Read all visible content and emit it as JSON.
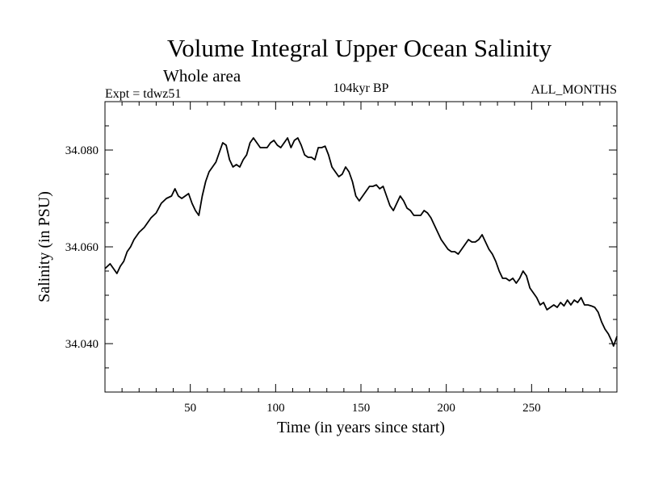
{
  "chart_data": {
    "type": "line",
    "title": "Volume Integral Upper Ocean Salinity",
    "subtitle": "Whole area",
    "experiment": "Expt = tdwz51",
    "period": "104kyr BP",
    "months": "ALL_MONTHS",
    "xlabel": "Time (in years since start)",
    "ylabel": "Salinity (in PSU)",
    "xlim": [
      0,
      300
    ],
    "ylim": [
      34.03,
      34.09
    ],
    "x_ticks": [
      {
        "value": 50,
        "label": "50"
      },
      {
        "value": 100,
        "label": "100"
      },
      {
        "value": 150,
        "label": "150"
      },
      {
        "value": 200,
        "label": "200"
      },
      {
        "value": 250,
        "label": "250"
      }
    ],
    "y_ticks": [
      {
        "value": 34.04,
        "label": "34.040"
      },
      {
        "value": 34.06,
        "label": "34.060"
      },
      {
        "value": 34.08,
        "label": "34.080"
      }
    ],
    "x_minor_step": 10,
    "y_minor_step": 0.005,
    "grid": false,
    "series": [
      {
        "name": "Salinity",
        "color": "#000000",
        "points": [
          [
            0,
            34.0555
          ],
          [
            3,
            34.0565
          ],
          [
            5,
            34.0555
          ],
          [
            7,
            34.0545
          ],
          [
            9,
            34.056
          ],
          [
            11,
            34.057
          ],
          [
            13,
            34.059
          ],
          [
            15,
            34.06
          ],
          [
            17,
            34.0615
          ],
          [
            20,
            34.063
          ],
          [
            23,
            34.064
          ],
          [
            25,
            34.065
          ],
          [
            27,
            34.066
          ],
          [
            30,
            34.067
          ],
          [
            33,
            34.069
          ],
          [
            36,
            34.07
          ],
          [
            39,
            34.0705
          ],
          [
            41,
            34.072
          ],
          [
            43,
            34.0705
          ],
          [
            45,
            34.07
          ],
          [
            47,
            34.0705
          ],
          [
            49,
            34.071
          ],
          [
            51,
            34.069
          ],
          [
            53,
            34.0675
          ],
          [
            55,
            34.0665
          ],
          [
            57,
            34.0705
          ],
          [
            59,
            34.0735
          ],
          [
            61,
            34.0755
          ],
          [
            63,
            34.0765
          ],
          [
            65,
            34.0775
          ],
          [
            67,
            34.0795
          ],
          [
            69,
            34.0815
          ],
          [
            71,
            34.081
          ],
          [
            73,
            34.078
          ],
          [
            75,
            34.0765
          ],
          [
            77,
            34.077
          ],
          [
            79,
            34.0765
          ],
          [
            81,
            34.078
          ],
          [
            83,
            34.079
          ],
          [
            85,
            34.0815
          ],
          [
            87,
            34.0825
          ],
          [
            89,
            34.0815
          ],
          [
            91,
            34.0805
          ],
          [
            93,
            34.0805
          ],
          [
            95,
            34.0805
          ],
          [
            97,
            34.0815
          ],
          [
            99,
            34.082
          ],
          [
            101,
            34.081
          ],
          [
            103,
            34.0805
          ],
          [
            105,
            34.0815
          ],
          [
            107,
            34.0825
          ],
          [
            109,
            34.0805
          ],
          [
            111,
            34.082
          ],
          [
            113,
            34.0825
          ],
          [
            115,
            34.081
          ],
          [
            117,
            34.079
          ],
          [
            119,
            34.0785
          ],
          [
            121,
            34.0785
          ],
          [
            123,
            34.078
          ],
          [
            125,
            34.0805
          ],
          [
            127,
            34.0805
          ],
          [
            129,
            34.0808
          ],
          [
            131,
            34.079
          ],
          [
            133,
            34.0765
          ],
          [
            135,
            34.0755
          ],
          [
            137,
            34.0745
          ],
          [
            139,
            34.075
          ],
          [
            141,
            34.0765
          ],
          [
            143,
            34.0755
          ],
          [
            145,
            34.0735
          ],
          [
            147,
            34.0705
          ],
          [
            149,
            34.0695
          ],
          [
            151,
            34.0705
          ],
          [
            153,
            34.0715
          ],
          [
            155,
            34.0725
          ],
          [
            157,
            34.0725
          ],
          [
            159,
            34.0728
          ],
          [
            161,
            34.072
          ],
          [
            163,
            34.0725
          ],
          [
            165,
            34.0705
          ],
          [
            167,
            34.0685
          ],
          [
            169,
            34.0675
          ],
          [
            171,
            34.069
          ],
          [
            173,
            34.0705
          ],
          [
            175,
            34.0695
          ],
          [
            177,
            34.068
          ],
          [
            179,
            34.0675
          ],
          [
            181,
            34.0665
          ],
          [
            183,
            34.0665
          ],
          [
            185,
            34.0665
          ],
          [
            187,
            34.0675
          ],
          [
            189,
            34.067
          ],
          [
            191,
            34.066
          ],
          [
            193,
            34.0645
          ],
          [
            195,
            34.063
          ],
          [
            197,
            34.0615
          ],
          [
            199,
            34.0605
          ],
          [
            201,
            34.0595
          ],
          [
            203,
            34.059
          ],
          [
            205,
            34.059
          ],
          [
            207,
            34.0585
          ],
          [
            209,
            34.0595
          ],
          [
            211,
            34.0605
          ],
          [
            213,
            34.0615
          ],
          [
            215,
            34.061
          ],
          [
            217,
            34.061
          ],
          [
            219,
            34.0615
          ],
          [
            221,
            34.0625
          ],
          [
            223,
            34.061
          ],
          [
            225,
            34.0595
          ],
          [
            227,
            34.0585
          ],
          [
            229,
            34.057
          ],
          [
            231,
            34.055
          ],
          [
            233,
            34.0535
          ],
          [
            235,
            34.0535
          ],
          [
            237,
            34.053
          ],
          [
            239,
            34.0535
          ],
          [
            241,
            34.0525
          ],
          [
            243,
            34.0535
          ],
          [
            245,
            34.055
          ],
          [
            247,
            34.054
          ],
          [
            249,
            34.0515
          ],
          [
            251,
            34.0505
          ],
          [
            253,
            34.0495
          ],
          [
            255,
            34.048
          ],
          [
            257,
            34.0485
          ],
          [
            259,
            34.047
          ],
          [
            261,
            34.0475
          ],
          [
            263,
            34.048
          ],
          [
            265,
            34.0475
          ],
          [
            267,
            34.0485
          ],
          [
            269,
            34.0478
          ],
          [
            271,
            34.049
          ],
          [
            273,
            34.048
          ],
          [
            275,
            34.049
          ],
          [
            277,
            34.0485
          ],
          [
            279,
            34.0495
          ],
          [
            281,
            34.048
          ],
          [
            283,
            34.048
          ],
          [
            285,
            34.0478
          ],
          [
            287,
            34.0475
          ],
          [
            289,
            34.0465
          ],
          [
            291,
            34.0445
          ],
          [
            293,
            34.043
          ],
          [
            295,
            34.042
          ],
          [
            297,
            34.0405
          ],
          [
            298,
            34.0395
          ],
          [
            300,
            34.0415
          ]
        ]
      }
    ]
  }
}
